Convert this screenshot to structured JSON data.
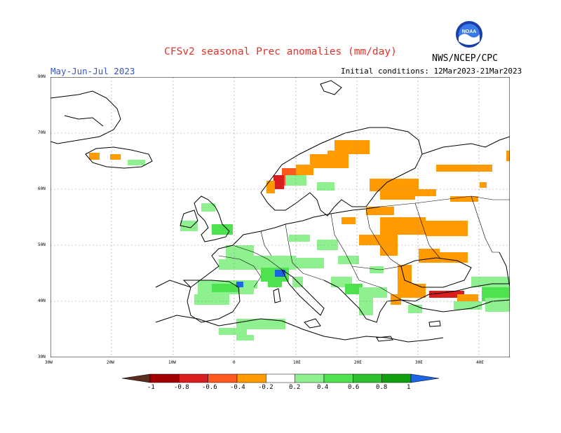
{
  "title": "CFSv2 seasonal Prec anomalies (mm/day)",
  "season": "May-Jun-Jul 2023",
  "initial_conditions": "Initial conditions: 12Mar2023-21Mar2023",
  "agency": "NWS/NCEP/CPC",
  "logo_text": "NOAA",
  "lat_labels": [
    "80N",
    "70N",
    "60N",
    "50N",
    "40N",
    "30N"
  ],
  "lon_labels": [
    "30W",
    "20W",
    "10W",
    "0",
    "10E",
    "20E",
    "30E",
    "40E"
  ],
  "colorbar": {
    "labels": [
      "-1",
      "-0.8",
      "-0.6",
      "-0.4",
      "-0.2",
      "0.2",
      "0.4",
      "0.6",
      "0.8",
      "1"
    ],
    "colors": [
      "#5a2d1e",
      "#a00000",
      "#d81e1e",
      "#ff5a1e",
      "#ff9a00",
      "#ffffff",
      "#8ff08f",
      "#4fe24f",
      "#2fc02f",
      "#10a010",
      "#1e64e6"
    ]
  }
}
